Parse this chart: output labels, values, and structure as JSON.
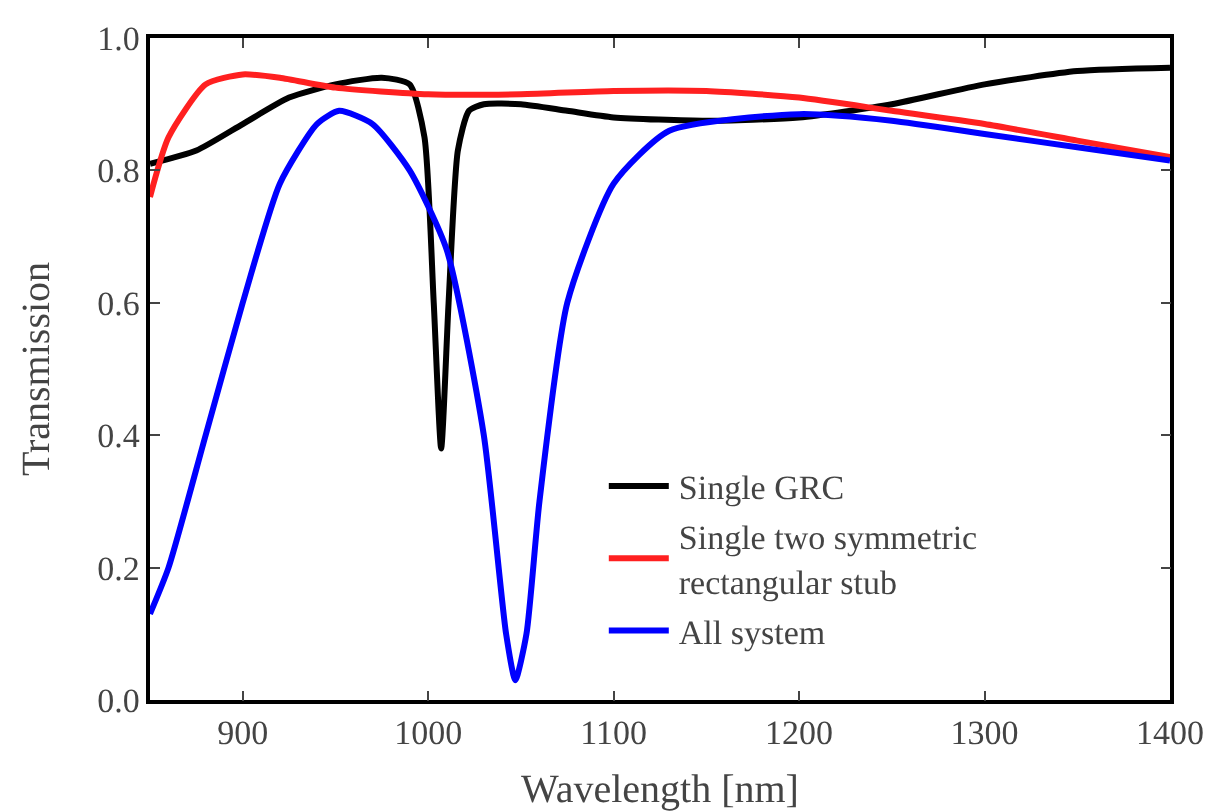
{
  "chart_data": {
    "type": "line",
    "xlabel": "Wavelength [nm]",
    "ylabel": "Transmission",
    "xlim": [
      850,
      1400
    ],
    "xticks": [
      900,
      1000,
      1100,
      1200,
      1300,
      1400
    ],
    "ylim": [
      0,
      1
    ],
    "yticks": [
      {
        "value": 0,
        "label": "0.0"
      },
      0.2,
      0.4,
      0.6,
      0.8,
      {
        "value": 1,
        "label": "1.0"
      }
    ],
    "grid": false,
    "legend": "bottom right",
    "marker": "none",
    "line_style": "solid",
    "series": [
      {
        "name": "Single GRC",
        "color": "#000000",
        "x": [
          850,
          875,
          900,
          925,
          950,
          975,
          990,
          998,
          1003,
          1007,
          1011,
          1016,
          1022,
          1030,
          1050,
          1075,
          1100,
          1150,
          1200,
          1250,
          1300,
          1350,
          1400
        ],
        "values": [
          0.81,
          0.83,
          0.87,
          0.91,
          0.93,
          0.94,
          0.93,
          0.85,
          0.6,
          0.38,
          0.6,
          0.83,
          0.89,
          0.9,
          0.9,
          0.89,
          0.88,
          0.875,
          0.88,
          0.9,
          0.93,
          0.95,
          0.955
        ]
      },
      {
        "name": "Single two symmetric rectangular stub",
        "color": "#ff2020",
        "x": [
          850,
          860,
          880,
          900,
          920,
          950,
          1000,
          1050,
          1100,
          1150,
          1200,
          1250,
          1300,
          1350,
          1400
        ],
        "values": [
          0.76,
          0.85,
          0.93,
          0.945,
          0.94,
          0.925,
          0.915,
          0.915,
          0.92,
          0.92,
          0.91,
          0.89,
          0.87,
          0.845,
          0.82
        ]
      },
      {
        "name": "All system",
        "color": "#0000ff",
        "x": [
          850,
          860,
          880,
          900,
          920,
          940,
          952,
          970,
          990,
          1010,
          1030,
          1042,
          1047,
          1053,
          1060,
          1075,
          1100,
          1130,
          1200,
          1250,
          1300,
          1350,
          1400
        ],
        "values": [
          0.13,
          0.2,
          0.4,
          0.6,
          0.78,
          0.87,
          0.89,
          0.87,
          0.8,
          0.68,
          0.4,
          0.1,
          0.03,
          0.1,
          0.3,
          0.6,
          0.78,
          0.86,
          0.885,
          0.875,
          0.855,
          0.835,
          0.815
        ]
      }
    ]
  }
}
